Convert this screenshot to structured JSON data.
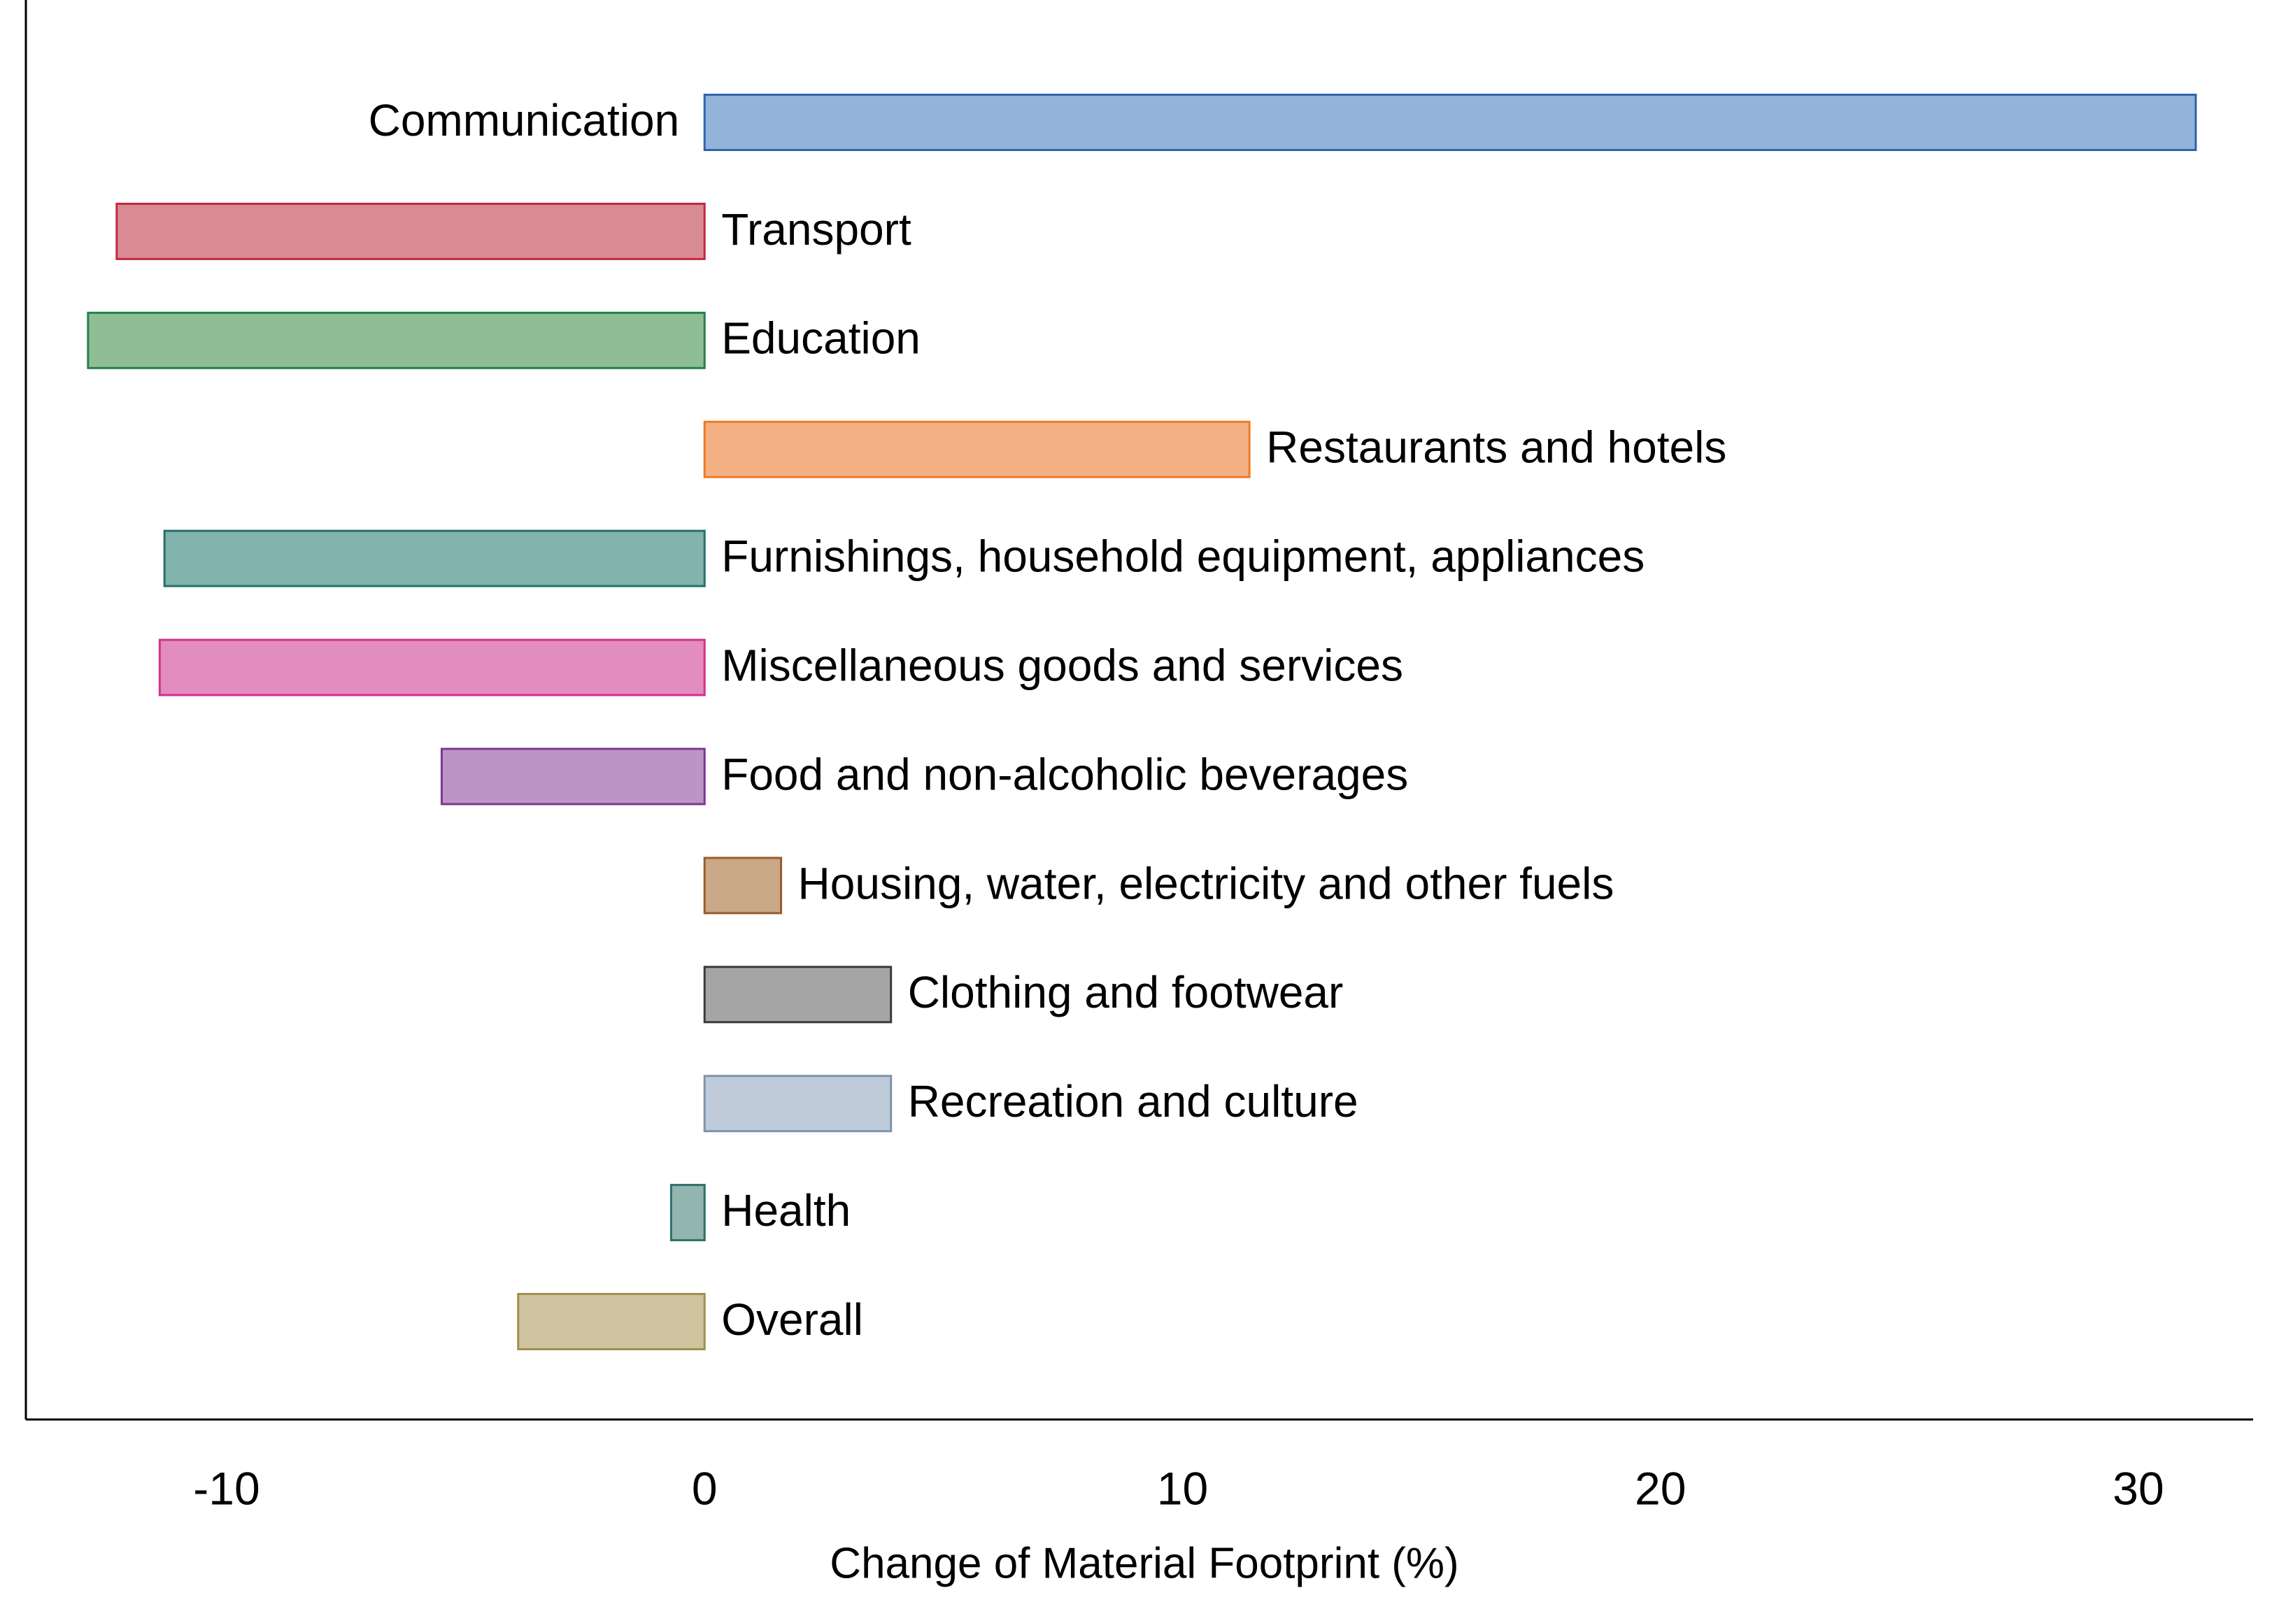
{
  "chart_data": {
    "type": "bar",
    "orientation": "horizontal",
    "xlabel": "Change of Material Footprint (%)",
    "categories": [
      "Communication",
      "Transport",
      "Education",
      "Restaurants and hotels",
      "Furnishings, household equipment, appliances",
      "Miscellaneous goods and services",
      "Food and non-alcoholic beverages",
      "Housing, water, electricity and other fuels",
      "Clothing and footwear",
      "Recreation and culture",
      "Health",
      "Overall"
    ],
    "values": [
      31.2,
      -12.3,
      -12.9,
      11.4,
      -11.3,
      -11.4,
      -5.5,
      1.6,
      3.9,
      3.9,
      -0.7,
      -3.9
    ],
    "colors": [
      "#92b4d9",
      "#d98b94",
      "#8fbe96",
      "#f3b183",
      "#82b3ad",
      "#e38cbe",
      "#bb96c4",
      "#c9a987",
      "#a5a5a5",
      "#bfcbd8",
      "#92b5b0",
      "#cec5a0"
    ],
    "edge_colors": [
      "#2e64ad",
      "#c2283e",
      "#25804a",
      "#ee7a26",
      "#26706b",
      "#d4318e",
      "#7b3791",
      "#9b5b2b",
      "#3a3a3a",
      "#7d94ad",
      "#2e6f69",
      "#a18e4a"
    ],
    "xlim": [
      -14.2,
      32.4
    ],
    "xticks": [
      -10,
      0,
      10,
      20,
      30
    ],
    "grid": false
  }
}
